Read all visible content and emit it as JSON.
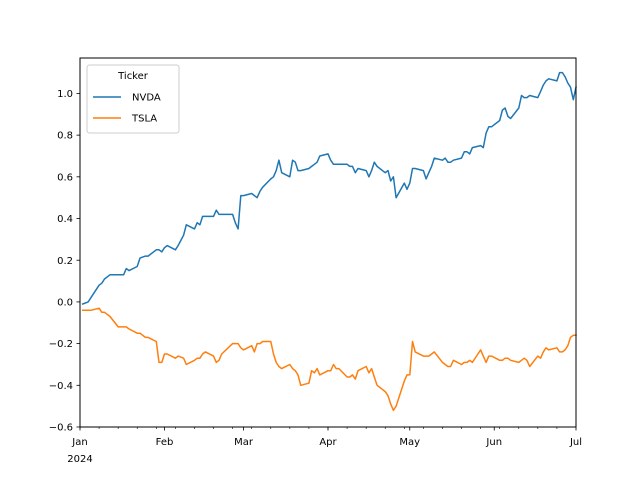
{
  "chart_data": {
    "type": "line",
    "title": "",
    "xlabel": "",
    "ylabel": "",
    "x_range": [
      "2024-01-01",
      "2024-07-01"
    ],
    "ylim": [
      -0.6,
      1.17
    ],
    "yticks": [
      -0.6,
      -0.4,
      -0.2,
      0.0,
      0.2,
      0.4,
      0.6,
      0.8,
      1.0
    ],
    "ytick_labels": [
      "−0.6",
      "−0.4",
      "−0.2",
      "0.0",
      "0.2",
      "0.4",
      "0.6",
      "0.8",
      "1.0"
    ],
    "xticks": [
      {
        "date": "2024-01-01",
        "label": "Jan",
        "sublabel": "2024"
      },
      {
        "date": "2024-02-01",
        "label": "Feb",
        "sublabel": ""
      },
      {
        "date": "2024-03-01",
        "label": "Mar",
        "sublabel": ""
      },
      {
        "date": "2024-04-01",
        "label": "Apr",
        "sublabel": ""
      },
      {
        "date": "2024-05-01",
        "label": "May",
        "sublabel": ""
      },
      {
        "date": "2024-06-01",
        "label": "Jun",
        "sublabel": ""
      },
      {
        "date": "2024-07-01",
        "label": "Jul",
        "sublabel": ""
      }
    ],
    "grid": false,
    "legend": {
      "title": "Ticker",
      "placement": "upper-left"
    },
    "series": [
      {
        "name": "NVDA",
        "color": "#1f77b4",
        "points": [
          [
            "2024-01-02",
            -0.01
          ],
          [
            "2024-01-04",
            0.0
          ],
          [
            "2024-01-05",
            0.02
          ],
          [
            "2024-01-08",
            0.08
          ],
          [
            "2024-01-09",
            0.09
          ],
          [
            "2024-01-10",
            0.11
          ],
          [
            "2024-01-12",
            0.13
          ],
          [
            "2024-01-15",
            0.13
          ],
          [
            "2024-01-17",
            0.13
          ],
          [
            "2024-01-18",
            0.16
          ],
          [
            "2024-01-19",
            0.15
          ],
          [
            "2024-01-22",
            0.17
          ],
          [
            "2024-01-23",
            0.21
          ],
          [
            "2024-01-25",
            0.22
          ],
          [
            "2024-01-26",
            0.22
          ],
          [
            "2024-01-29",
            0.25
          ],
          [
            "2024-01-30",
            0.25
          ],
          [
            "2024-01-31",
            0.24
          ],
          [
            "2024-02-01",
            0.26
          ],
          [
            "2024-02-02",
            0.27
          ],
          [
            "2024-02-05",
            0.25
          ],
          [
            "2024-02-06",
            0.27
          ],
          [
            "2024-02-08",
            0.32
          ],
          [
            "2024-02-09",
            0.37
          ],
          [
            "2024-02-12",
            0.35
          ],
          [
            "2024-02-13",
            0.38
          ],
          [
            "2024-02-14",
            0.37
          ],
          [
            "2024-02-15",
            0.41
          ],
          [
            "2024-02-16",
            0.41
          ],
          [
            "2024-02-19",
            0.41
          ],
          [
            "2024-02-20",
            0.44
          ],
          [
            "2024-02-21",
            0.42
          ],
          [
            "2024-02-22",
            0.42
          ],
          [
            "2024-02-26",
            0.42
          ],
          [
            "2024-02-27",
            0.38
          ],
          [
            "2024-02-28",
            0.35
          ],
          [
            "2024-02-29",
            0.51
          ],
          [
            "2024-03-01",
            0.51
          ],
          [
            "2024-03-04",
            0.52
          ],
          [
            "2024-03-05",
            0.51
          ],
          [
            "2024-03-06",
            0.5
          ],
          [
            "2024-03-07",
            0.53
          ],
          [
            "2024-03-08",
            0.55
          ],
          [
            "2024-03-11",
            0.59
          ],
          [
            "2024-03-12",
            0.6
          ],
          [
            "2024-03-13",
            0.63
          ],
          [
            "2024-03-14",
            0.68
          ],
          [
            "2024-03-15",
            0.62
          ],
          [
            "2024-03-18",
            0.6
          ],
          [
            "2024-03-19",
            0.68
          ],
          [
            "2024-03-20",
            0.67
          ],
          [
            "2024-03-21",
            0.63
          ],
          [
            "2024-03-22",
            0.63
          ],
          [
            "2024-03-25",
            0.64
          ],
          [
            "2024-03-26",
            0.65
          ],
          [
            "2024-03-27",
            0.66
          ],
          [
            "2024-03-28",
            0.67
          ],
          [
            "2024-03-29",
            0.7
          ],
          [
            "2024-04-01",
            0.71
          ],
          [
            "2024-04-02",
            0.68
          ],
          [
            "2024-04-03",
            0.66
          ],
          [
            "2024-04-04",
            0.66
          ],
          [
            "2024-04-05",
            0.66
          ],
          [
            "2024-04-08",
            0.66
          ],
          [
            "2024-04-09",
            0.65
          ],
          [
            "2024-04-10",
            0.65
          ],
          [
            "2024-04-11",
            0.62
          ],
          [
            "2024-04-12",
            0.64
          ],
          [
            "2024-04-15",
            0.63
          ],
          [
            "2024-04-16",
            0.6
          ],
          [
            "2024-04-17",
            0.63
          ],
          [
            "2024-04-18",
            0.67
          ],
          [
            "2024-04-19",
            0.65
          ],
          [
            "2024-04-22",
            0.62
          ],
          [
            "2024-04-23",
            0.63
          ],
          [
            "2024-04-24",
            0.58
          ],
          [
            "2024-04-25",
            0.6
          ],
          [
            "2024-04-26",
            0.5
          ],
          [
            "2024-04-29",
            0.57
          ],
          [
            "2024-04-30",
            0.54
          ],
          [
            "2024-05-01",
            0.57
          ],
          [
            "2024-05-02",
            0.64
          ],
          [
            "2024-05-03",
            0.64
          ],
          [
            "2024-05-06",
            0.63
          ],
          [
            "2024-05-07",
            0.59
          ],
          [
            "2024-05-08",
            0.62
          ],
          [
            "2024-05-09",
            0.65
          ],
          [
            "2024-05-10",
            0.69
          ],
          [
            "2024-05-13",
            0.68
          ],
          [
            "2024-05-14",
            0.69
          ],
          [
            "2024-05-15",
            0.67
          ],
          [
            "2024-05-16",
            0.67
          ],
          [
            "2024-05-17",
            0.68
          ],
          [
            "2024-05-20",
            0.69
          ],
          [
            "2024-05-21",
            0.72
          ],
          [
            "2024-05-22",
            0.72
          ],
          [
            "2024-05-23",
            0.71
          ],
          [
            "2024-05-24",
            0.74
          ],
          [
            "2024-05-27",
            0.75
          ],
          [
            "2024-05-28",
            0.74
          ],
          [
            "2024-05-29",
            0.81
          ],
          [
            "2024-05-30",
            0.84
          ],
          [
            "2024-05-31",
            0.84
          ],
          [
            "2024-06-03",
            0.87
          ],
          [
            "2024-06-04",
            0.92
          ],
          [
            "2024-06-05",
            0.93
          ],
          [
            "2024-06-06",
            0.89
          ],
          [
            "2024-06-07",
            0.88
          ],
          [
            "2024-06-10",
            0.93
          ],
          [
            "2024-06-11",
            0.99
          ],
          [
            "2024-06-12",
            0.98
          ],
          [
            "2024-06-13",
            0.98
          ],
          [
            "2024-06-14",
            0.99
          ],
          [
            "2024-06-17",
            0.98
          ],
          [
            "2024-06-18",
            1.01
          ],
          [
            "2024-06-19",
            1.04
          ],
          [
            "2024-06-20",
            1.06
          ],
          [
            "2024-06-21",
            1.07
          ],
          [
            "2024-06-24",
            1.06
          ],
          [
            "2024-06-25",
            1.1
          ],
          [
            "2024-06-26",
            1.1
          ],
          [
            "2024-06-27",
            1.08
          ],
          [
            "2024-06-28",
            1.05
          ],
          [
            "2024-06-29",
            1.03
          ],
          [
            "2024-06-30",
            0.97
          ],
          [
            "2024-07-01",
            1.03
          ]
        ]
      },
      {
        "name": "TSLA",
        "color": "#ff7f0e",
        "points": [
          [
            "2024-01-02",
            -0.04
          ],
          [
            "2024-01-04",
            -0.04
          ],
          [
            "2024-01-05",
            -0.04
          ],
          [
            "2024-01-08",
            -0.03
          ],
          [
            "2024-01-09",
            -0.05
          ],
          [
            "2024-01-10",
            -0.05
          ],
          [
            "2024-01-12",
            -0.07
          ],
          [
            "2024-01-15",
            -0.12
          ],
          [
            "2024-01-17",
            -0.12
          ],
          [
            "2024-01-18",
            -0.12
          ],
          [
            "2024-01-19",
            -0.13
          ],
          [
            "2024-01-22",
            -0.15
          ],
          [
            "2024-01-23",
            -0.15
          ],
          [
            "2024-01-25",
            -0.17
          ],
          [
            "2024-01-26",
            -0.17
          ],
          [
            "2024-01-29",
            -0.19
          ],
          [
            "2024-01-30",
            -0.29
          ],
          [
            "2024-01-31",
            -0.29
          ],
          [
            "2024-02-01",
            -0.25
          ],
          [
            "2024-02-02",
            -0.25
          ],
          [
            "2024-02-05",
            -0.27
          ],
          [
            "2024-02-06",
            -0.26
          ],
          [
            "2024-02-08",
            -0.27
          ],
          [
            "2024-02-09",
            -0.3
          ],
          [
            "2024-02-12",
            -0.28
          ],
          [
            "2024-02-13",
            -0.27
          ],
          [
            "2024-02-14",
            -0.27
          ],
          [
            "2024-02-15",
            -0.25
          ],
          [
            "2024-02-16",
            -0.24
          ],
          [
            "2024-02-19",
            -0.26
          ],
          [
            "2024-02-20",
            -0.29
          ],
          [
            "2024-02-21",
            -0.28
          ],
          [
            "2024-02-22",
            -0.25
          ],
          [
            "2024-02-26",
            -0.2
          ],
          [
            "2024-02-27",
            -0.2
          ],
          [
            "2024-02-28",
            -0.2
          ],
          [
            "2024-02-29",
            -0.22
          ],
          [
            "2024-03-01",
            -0.23
          ],
          [
            "2024-03-04",
            -0.21
          ],
          [
            "2024-03-05",
            -0.24
          ],
          [
            "2024-03-06",
            -0.2
          ],
          [
            "2024-03-07",
            -0.2
          ],
          [
            "2024-03-08",
            -0.19
          ],
          [
            "2024-03-11",
            -0.19
          ],
          [
            "2024-03-12",
            -0.25
          ],
          [
            "2024-03-13",
            -0.29
          ],
          [
            "2024-03-14",
            -0.31
          ],
          [
            "2024-03-15",
            -0.32
          ],
          [
            "2024-03-18",
            -0.3
          ],
          [
            "2024-03-19",
            -0.32
          ],
          [
            "2024-03-20",
            -0.33
          ],
          [
            "2024-03-21",
            -0.35
          ],
          [
            "2024-03-22",
            -0.4
          ],
          [
            "2024-03-25",
            -0.39
          ],
          [
            "2024-03-26",
            -0.33
          ],
          [
            "2024-03-27",
            -0.34
          ],
          [
            "2024-03-28",
            -0.32
          ],
          [
            "2024-03-29",
            -0.35
          ],
          [
            "2024-04-01",
            -0.33
          ],
          [
            "2024-04-02",
            -0.33
          ],
          [
            "2024-04-03",
            -0.3
          ],
          [
            "2024-04-04",
            -0.32
          ],
          [
            "2024-04-05",
            -0.32
          ],
          [
            "2024-04-08",
            -0.36
          ],
          [
            "2024-04-09",
            -0.36
          ],
          [
            "2024-04-10",
            -0.35
          ],
          [
            "2024-04-11",
            -0.37
          ],
          [
            "2024-04-12",
            -0.33
          ],
          [
            "2024-04-15",
            -0.31
          ],
          [
            "2024-04-16",
            -0.34
          ],
          [
            "2024-04-17",
            -0.32
          ],
          [
            "2024-04-18",
            -0.36
          ],
          [
            "2024-04-19",
            -0.4
          ],
          [
            "2024-04-22",
            -0.43
          ],
          [
            "2024-04-23",
            -0.45
          ],
          [
            "2024-04-24",
            -0.49
          ],
          [
            "2024-04-25",
            -0.52
          ],
          [
            "2024-04-26",
            -0.5
          ],
          [
            "2024-04-29",
            -0.38
          ],
          [
            "2024-04-30",
            -0.35
          ],
          [
            "2024-05-01",
            -0.35
          ],
          [
            "2024-05-02",
            -0.19
          ],
          [
            "2024-05-03",
            -0.24
          ],
          [
            "2024-05-06",
            -0.26
          ],
          [
            "2024-05-07",
            -0.26
          ],
          [
            "2024-05-08",
            -0.26
          ],
          [
            "2024-05-09",
            -0.25
          ],
          [
            "2024-05-10",
            -0.24
          ],
          [
            "2024-05-13",
            -0.29
          ],
          [
            "2024-05-14",
            -0.3
          ],
          [
            "2024-05-15",
            -0.31
          ],
          [
            "2024-05-16",
            -0.31
          ],
          [
            "2024-05-17",
            -0.28
          ],
          [
            "2024-05-20",
            -0.3
          ],
          [
            "2024-05-21",
            -0.29
          ],
          [
            "2024-05-22",
            -0.29
          ],
          [
            "2024-05-23",
            -0.28
          ],
          [
            "2024-05-24",
            -0.29
          ],
          [
            "2024-05-27",
            -0.23
          ],
          [
            "2024-05-28",
            -0.26
          ],
          [
            "2024-05-29",
            -0.29
          ],
          [
            "2024-05-30",
            -0.26
          ],
          [
            "2024-05-31",
            -0.26
          ],
          [
            "2024-06-03",
            -0.28
          ],
          [
            "2024-06-04",
            -0.28
          ],
          [
            "2024-06-05",
            -0.27
          ],
          [
            "2024-06-06",
            -0.27
          ],
          [
            "2024-06-07",
            -0.28
          ],
          [
            "2024-06-10",
            -0.29
          ],
          [
            "2024-06-11",
            -0.28
          ],
          [
            "2024-06-12",
            -0.27
          ],
          [
            "2024-06-13",
            -0.28
          ],
          [
            "2024-06-14",
            -0.31
          ],
          [
            "2024-06-17",
            -0.26
          ],
          [
            "2024-06-18",
            -0.27
          ],
          [
            "2024-06-19",
            -0.24
          ],
          [
            "2024-06-20",
            -0.22
          ],
          [
            "2024-06-21",
            -0.23
          ],
          [
            "2024-06-24",
            -0.22
          ],
          [
            "2024-06-25",
            -0.24
          ],
          [
            "2024-06-26",
            -0.24
          ],
          [
            "2024-06-27",
            -0.23
          ],
          [
            "2024-06-28",
            -0.21
          ],
          [
            "2024-06-29",
            -0.17
          ],
          [
            "2024-06-30",
            -0.16
          ],
          [
            "2024-07-01",
            -0.16
          ]
        ]
      }
    ]
  }
}
